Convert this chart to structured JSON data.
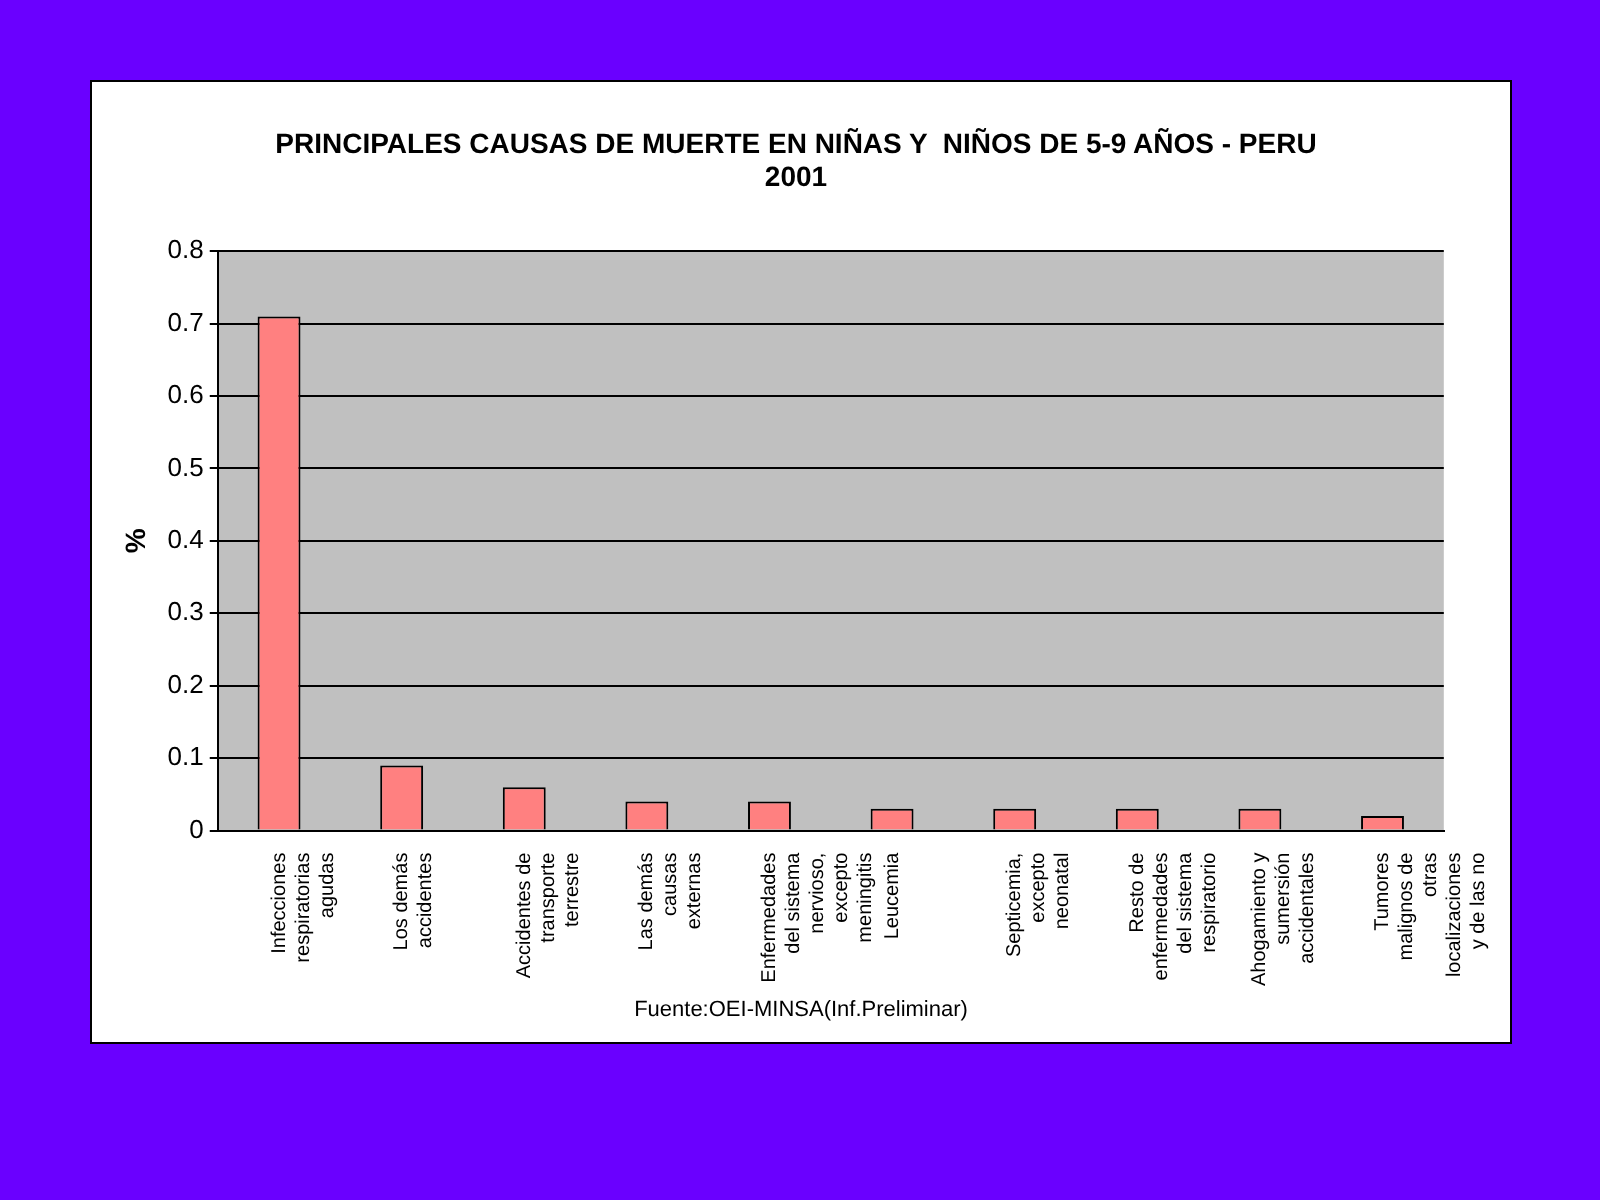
{
  "chart_data": {
    "type": "bar",
    "title": [
      "PRINCIPALES CAUSAS DE MUERTE EN NIÑAS Y  NIÑOS DE 5-9 AÑOS - PERU",
      "2001"
    ],
    "ylabel": "%",
    "categories": [
      "Infecciones respiratorias agudas",
      "Los demás accidentes",
      "Accidentes de transporte terrestre",
      "Las demás causas externas",
      "Enfermedades del sistema nervioso, excepto meningitis",
      "Leucemia",
      "Septicemia, excepto neonatal",
      "Resto de enfermedades del sistema respiratorio",
      "Ahogamiento y sumersión accidentales",
      "Tumores malignos de otras localizaciones y de las no"
    ],
    "values": [
      0.71,
      0.09,
      0.06,
      0.04,
      0.04,
      0.03,
      0.03,
      0.03,
      0.03,
      0.02
    ],
    "color": "#ff8080",
    "ylim": [
      0,
      0.8
    ],
    "yticks": [
      0,
      0.1,
      0.2,
      0.3,
      0.4,
      0.5,
      0.6,
      0.7,
      0.8
    ],
    "grid": "y",
    "legend": false,
    "annotations": [
      "Fuente:OEI-MINSA(Inf.Preliminar)"
    ]
  }
}
